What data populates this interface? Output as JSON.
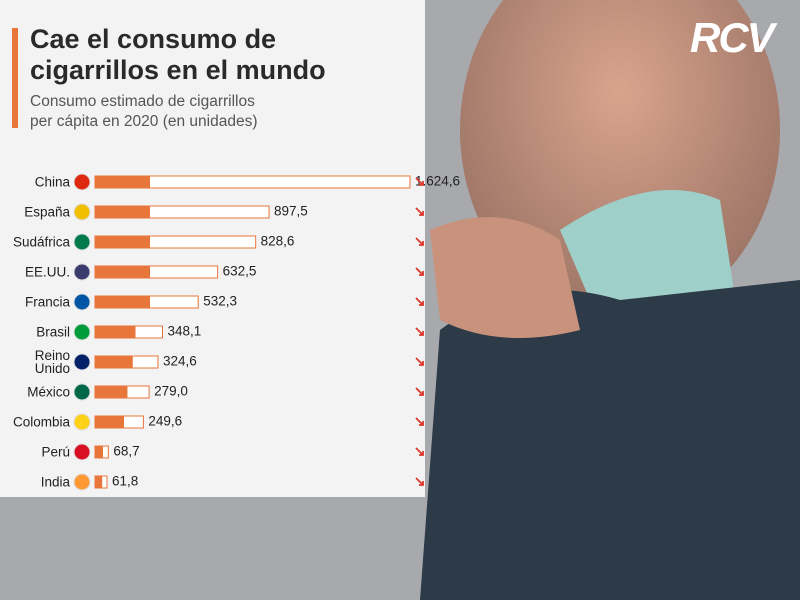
{
  "logo": "RCV",
  "chart_data": {
    "type": "bar",
    "orientation": "horizontal",
    "title": "Cae el consumo de cigarrillos en el mundo",
    "subtitle": "Consumo estimado de cigarrillos per cápita en 2020 (en unidades)",
    "categories": [
      "China",
      "España",
      "Sudáfrica",
      "EE.UU.",
      "Francia",
      "Brasil",
      "Reino Unido",
      "México",
      "Colombia",
      "Perú",
      "India"
    ],
    "values": [
      1624.6,
      897.5,
      828.6,
      632.5,
      532.3,
      348.1,
      324.6,
      279.0,
      249.6,
      68.7,
      61.8
    ],
    "value_labels": [
      "1.624,6",
      "897,5",
      "828,6",
      "632,5",
      "532,3",
      "348,1",
      "324,6",
      "279,0",
      "249,6",
      "68,7",
      "61,8"
    ],
    "color": "#e8763a"
  }
}
